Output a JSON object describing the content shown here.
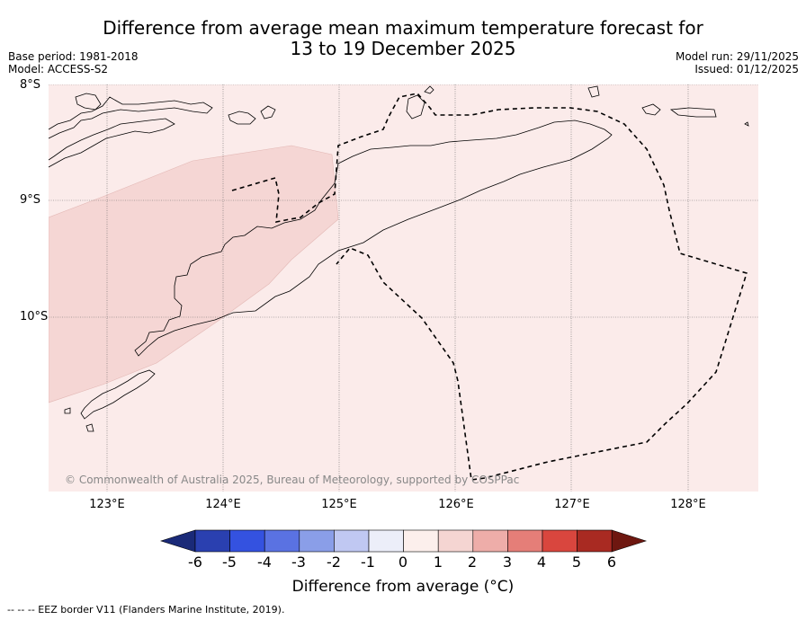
{
  "title": {
    "line1": "Difference from average mean maximum temperature forecast for",
    "line2": "13 to 19 December 2025"
  },
  "meta": {
    "base_period": "Base period: 1981-2018",
    "model": "Model: ACCESS-S2",
    "model_run": "Model run: 29/11/2025",
    "issued": "Issued: 01/12/2025"
  },
  "axes": {
    "lat_labels": [
      "8°S",
      "9°S",
      "10°S"
    ],
    "lon_labels": [
      "123°E",
      "124°E",
      "125°E",
      "126°E",
      "127°E",
      "128°E"
    ]
  },
  "copyright": "© Commonwealth of Australia 2025, Bureau of Meteorology, supported by COSPPac",
  "colorbar": {
    "title": "Difference from average (°C)",
    "ticks": [
      "-6",
      "-5",
      "-4",
      "-3",
      "-2",
      "-1",
      "0",
      "1",
      "2",
      "3",
      "4",
      "5",
      "6"
    ],
    "colors": [
      "#1a2a78",
      "#2a40b0",
      "#3452e0",
      "#5a72e2",
      "#8a9ee8",
      "#c0c8f2",
      "#eceef9",
      "#fcefec",
      "#f5d5d2",
      "#eeada9",
      "#e57e78",
      "#d9463e",
      "#a92a22",
      "#6e1710"
    ]
  },
  "map_colors": {
    "background": "#fbebea",
    "warm_band": "#f5d6d4"
  },
  "legend": "--  --  -- EEZ border V11 (Flanders Marine Institute, 2019)."
}
